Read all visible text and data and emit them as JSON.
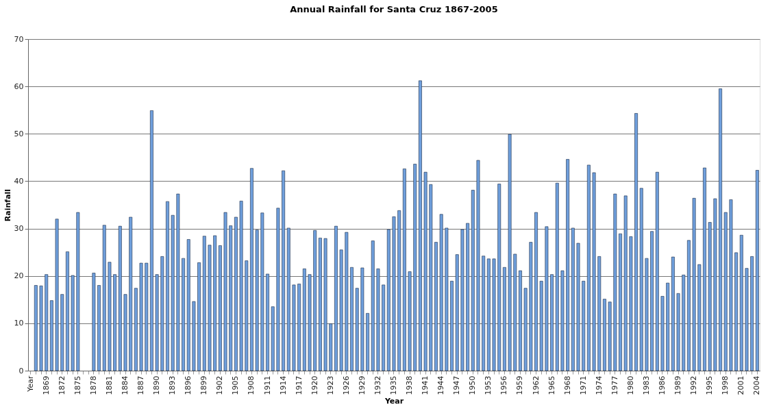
{
  "chart_data": {
    "type": "bar",
    "title": "Annual Rainfall for Santa Cruz 1867-2005",
    "xlabel": "Year",
    "ylabel": "Rainfall",
    "categories": [
      "Year",
      null,
      null,
      "1869",
      null,
      null,
      "1872",
      null,
      null,
      "1875",
      null,
      null,
      "1878",
      null,
      null,
      "1881",
      null,
      null,
      "1884",
      null,
      null,
      "1887",
      null,
      null,
      "1890",
      null,
      null,
      "1893",
      null,
      null,
      "1896",
      null,
      null,
      "1899",
      null,
      null,
      "1902",
      null,
      null,
      "1905",
      null,
      null,
      "1908",
      null,
      null,
      "1911",
      null,
      null,
      "1914",
      null,
      null,
      "1917",
      null,
      null,
      "1920",
      null,
      null,
      "1923",
      null,
      null,
      "1926",
      null,
      null,
      "1929",
      null,
      null,
      "1932",
      null,
      null,
      "1935",
      null,
      null,
      "1938",
      null,
      null,
      "1941",
      null,
      null,
      "1944",
      null,
      null,
      "1947",
      null,
      null,
      "1950",
      null,
      null,
      "1953",
      null,
      null,
      "1956",
      null,
      null,
      "1959",
      null,
      null,
      "1962",
      null,
      null,
      "1965",
      null,
      null,
      "1968",
      null,
      null,
      "1971",
      null,
      null,
      "1974",
      null,
      null,
      "1977",
      null,
      null,
      "1980",
      null,
      null,
      "1983",
      null,
      null,
      "1986",
      null,
      null,
      "1989",
      null,
      null,
      "1992",
      null,
      null,
      "1995",
      null,
      null,
      "1998",
      null,
      null,
      "2001",
      null,
      null,
      "2004"
    ],
    "values": [
      null,
      18.0,
      17.9,
      20.3,
      14.8,
      32.0,
      16.1,
      25.1,
      20.1,
      33.4,
      null,
      null,
      20.6,
      18.0,
      30.7,
      22.9,
      20.3,
      30.5,
      16.1,
      32.4,
      17.4,
      22.7,
      22.7,
      54.9,
      20.3,
      24.1,
      35.7,
      32.8,
      37.3,
      23.7,
      27.7,
      14.6,
      22.8,
      28.4,
      26.5,
      28.5,
      26.4,
      33.4,
      30.6,
      32.4,
      35.8,
      23.2,
      42.7,
      29.7,
      33.3,
      20.4,
      13.5,
      34.3,
      42.2,
      30.1,
      18.1,
      18.3,
      21.5,
      20.3,
      29.6,
      28.0,
      27.9,
      9.9,
      30.5,
      25.5,
      29.2,
      21.8,
      17.4,
      21.7,
      12.1,
      27.4,
      21.5,
      18.1,
      29.8,
      32.5,
      33.8,
      42.6,
      20.9,
      43.6,
      61.2,
      41.9,
      39.3,
      27.1,
      33.0,
      30.1,
      18.9,
      24.5,
      29.8,
      31.1,
      38.1,
      44.4,
      24.2,
      23.6,
      23.6,
      39.4,
      21.8,
      49.9,
      24.6,
      21.1,
      17.4,
      27.1,
      33.4,
      18.9,
      30.4,
      20.3,
      39.6,
      21.1,
      44.6,
      30.1,
      26.9,
      18.9,
      43.4,
      41.8,
      24.1,
      15.1,
      14.5,
      37.3,
      28.9,
      36.9,
      28.3,
      54.3,
      38.5,
      23.7,
      29.4,
      41.9,
      15.7,
      18.5,
      24.0,
      16.3,
      20.2,
      27.5,
      36.4,
      22.4,
      42.8,
      31.3,
      36.3,
      59.5,
      33.4,
      36.1,
      24.9,
      28.6,
      21.6,
      24.1,
      42.3
    ],
    "color": "#6f9fdc",
    "ylim": [
      0,
      70
    ],
    "yticks": [
      0,
      10,
      20,
      30,
      40,
      50,
      60,
      70
    ],
    "grid": "y"
  }
}
